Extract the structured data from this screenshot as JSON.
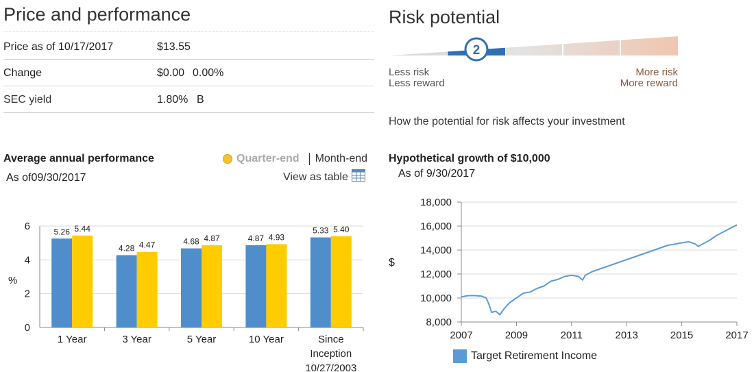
{
  "price_section": {
    "title": "Price and performance",
    "rows": [
      {
        "label": "Price as of 10/17/2017",
        "value": "$13.55",
        "extra": ""
      },
      {
        "label": "Change",
        "value": "$0.00",
        "extra": "0.00%"
      },
      {
        "label": "SEC yield",
        "value": "1.80%",
        "extra": "B"
      }
    ]
  },
  "risk_section": {
    "title": "Risk potential",
    "level": 2,
    "level_text": "2",
    "levels_total": 5,
    "left_line1": "Less risk",
    "left_line2": "Less reward",
    "right_line1": "More risk",
    "right_line2": "More reward",
    "link": "How the potential for risk affects your investment"
  },
  "performance": {
    "title": "Average annual performance",
    "as_of": "As of09/30/2017",
    "toggle_quarter": "Quarter-end",
    "toggle_month": "Month-end",
    "view_table": "View as table"
  },
  "growth": {
    "title": "Hypothetical growth of $10,000",
    "as_of": "As of 9/30/2017",
    "legend": "Target Retirement Income"
  },
  "colors": {
    "bar_blue": "#4f8ecb",
    "bar_gold": "#ffcc00",
    "line_blue": "#5b9bd5",
    "risk_active": "#2f6fb3"
  },
  "chart_data": [
    {
      "type": "bar",
      "categories": [
        "1 Year",
        "3 Year",
        "5 Year",
        "10 Year",
        "Since Inception 10/27/2003"
      ],
      "category_lines": [
        [
          "1 Year"
        ],
        [
          "3 Year"
        ],
        [
          "5 Year"
        ],
        [
          "10 Year"
        ],
        [
          "Since",
          "Inception",
          "10/27/2003"
        ]
      ],
      "series": [
        {
          "color": "#4f8ecb",
          "values": [
            5.26,
            4.28,
            4.68,
            4.87,
            5.33
          ]
        },
        {
          "color": "#ffcc00",
          "values": [
            5.44,
            4.47,
            4.87,
            4.93,
            5.4
          ]
        }
      ],
      "ylabel": "%",
      "ylim": [
        0,
        6
      ],
      "yticks": [
        0,
        2,
        4,
        6
      ],
      "grid": true
    },
    {
      "type": "line",
      "ylabel": "$",
      "xlim": [
        2007,
        2017
      ],
      "ylim": [
        8000,
        18000
      ],
      "xticks": [
        "2007",
        "2009",
        "2011",
        "2013",
        "2015",
        "2017"
      ],
      "yticks": [
        "8,000",
        "10,000",
        "12,000",
        "14,000",
        "16,000",
        "18,000"
      ],
      "grid": true,
      "series": [
        {
          "name": "Target Retirement Income",
          "x": [
            2007.0,
            2007.25,
            2007.5,
            2007.75,
            2007.9,
            2008.0,
            2008.1,
            2008.25,
            2008.4,
            2008.55,
            2008.75,
            2009.0,
            2009.25,
            2009.5,
            2009.75,
            2010.0,
            2010.25,
            2010.5,
            2010.75,
            2011.0,
            2011.25,
            2011.4,
            2011.5,
            2011.75,
            2012.0,
            2012.25,
            2012.5,
            2012.75,
            2013.0,
            2013.25,
            2013.5,
            2013.75,
            2014.0,
            2014.25,
            2014.5,
            2014.75,
            2015.0,
            2015.25,
            2015.5,
            2015.6,
            2015.75,
            2016.0,
            2016.25,
            2016.5,
            2016.75,
            2017.0
          ],
          "y": [
            10100,
            10200,
            10200,
            10150,
            10000,
            9500,
            8800,
            8900,
            8600,
            9100,
            9600,
            10000,
            10400,
            10500,
            10800,
            11000,
            11400,
            11550,
            11800,
            11900,
            11800,
            11500,
            11900,
            12200,
            12400,
            12600,
            12800,
            13000,
            13200,
            13400,
            13600,
            13800,
            14000,
            14200,
            14400,
            14500,
            14600,
            14700,
            14500,
            14300,
            14500,
            14800,
            15200,
            15500,
            15800,
            16100
          ]
        }
      ]
    }
  ]
}
